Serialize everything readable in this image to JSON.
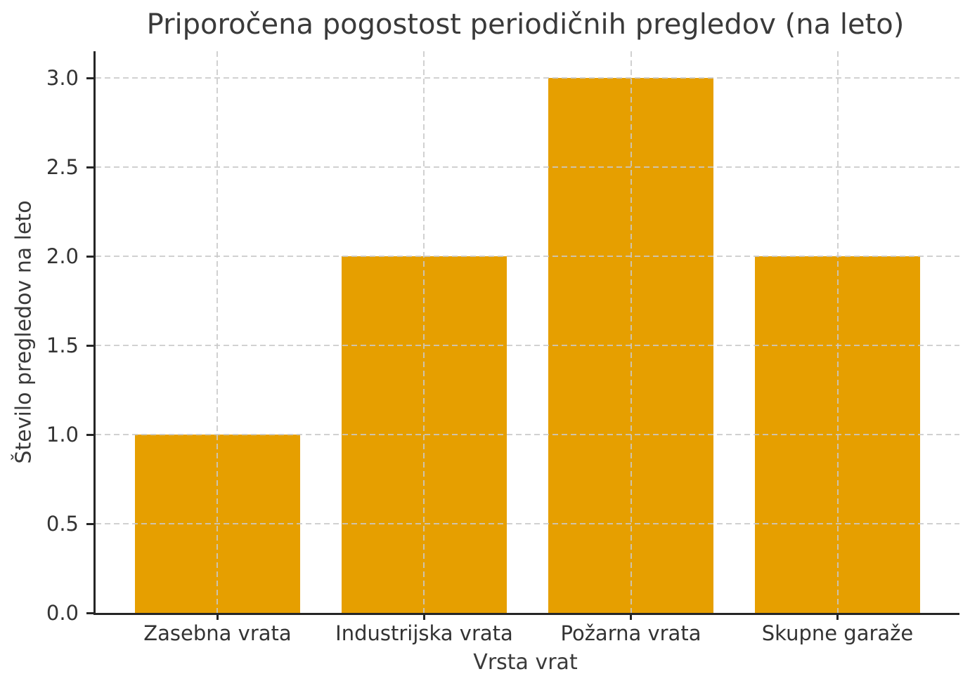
{
  "chart_data": {
    "type": "bar",
    "title": "Priporočena pogostost periodičnih pregledov (na leto)",
    "xlabel": "Vrsta vrat",
    "ylabel": "Število pregledov na leto",
    "categories": [
      "Zasebna vrata",
      "Industrijska vrata",
      "Požarna vrata",
      "Skupne garaže"
    ],
    "values": [
      1,
      2,
      3,
      2
    ],
    "yticks": [
      0.0,
      0.5,
      1.0,
      1.5,
      2.0,
      2.5,
      3.0
    ],
    "ytick_labels": [
      "0.0",
      "0.5",
      "1.0",
      "1.5",
      "2.0",
      "2.5",
      "3.0"
    ],
    "ylim": [
      0,
      3.15
    ],
    "bar_width_fraction": 0.8,
    "grid": {
      "show": true,
      "axis": "both",
      "style": "dashed",
      "color": "#c9c9c9",
      "drawn_above_bars": true
    },
    "legend": "none",
    "colors": {
      "bar": "#E69F00",
      "spine": "#262626",
      "text": "#3a3a3a",
      "background": "#ffffff"
    }
  }
}
